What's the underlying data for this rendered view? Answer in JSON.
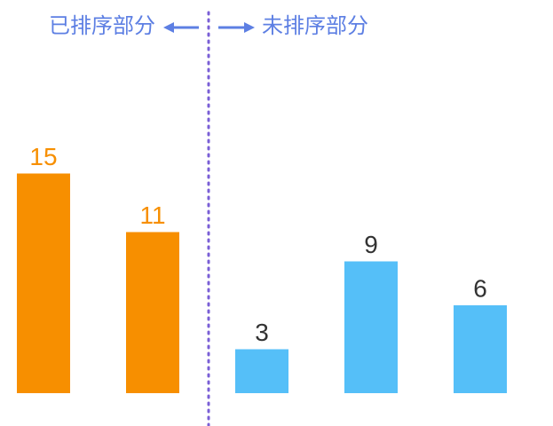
{
  "chart_data": {
    "type": "bar",
    "series": [
      {
        "name": "已排序部分",
        "color": "#f78f00",
        "label_color": "#f78f00",
        "values": [
          15,
          11,
          null,
          null,
          null
        ]
      },
      {
        "name": "未排序部分",
        "color": "#55bff8",
        "label_color": "#333333",
        "values": [
          null,
          null,
          3,
          9,
          6
        ]
      }
    ]
  }
}
